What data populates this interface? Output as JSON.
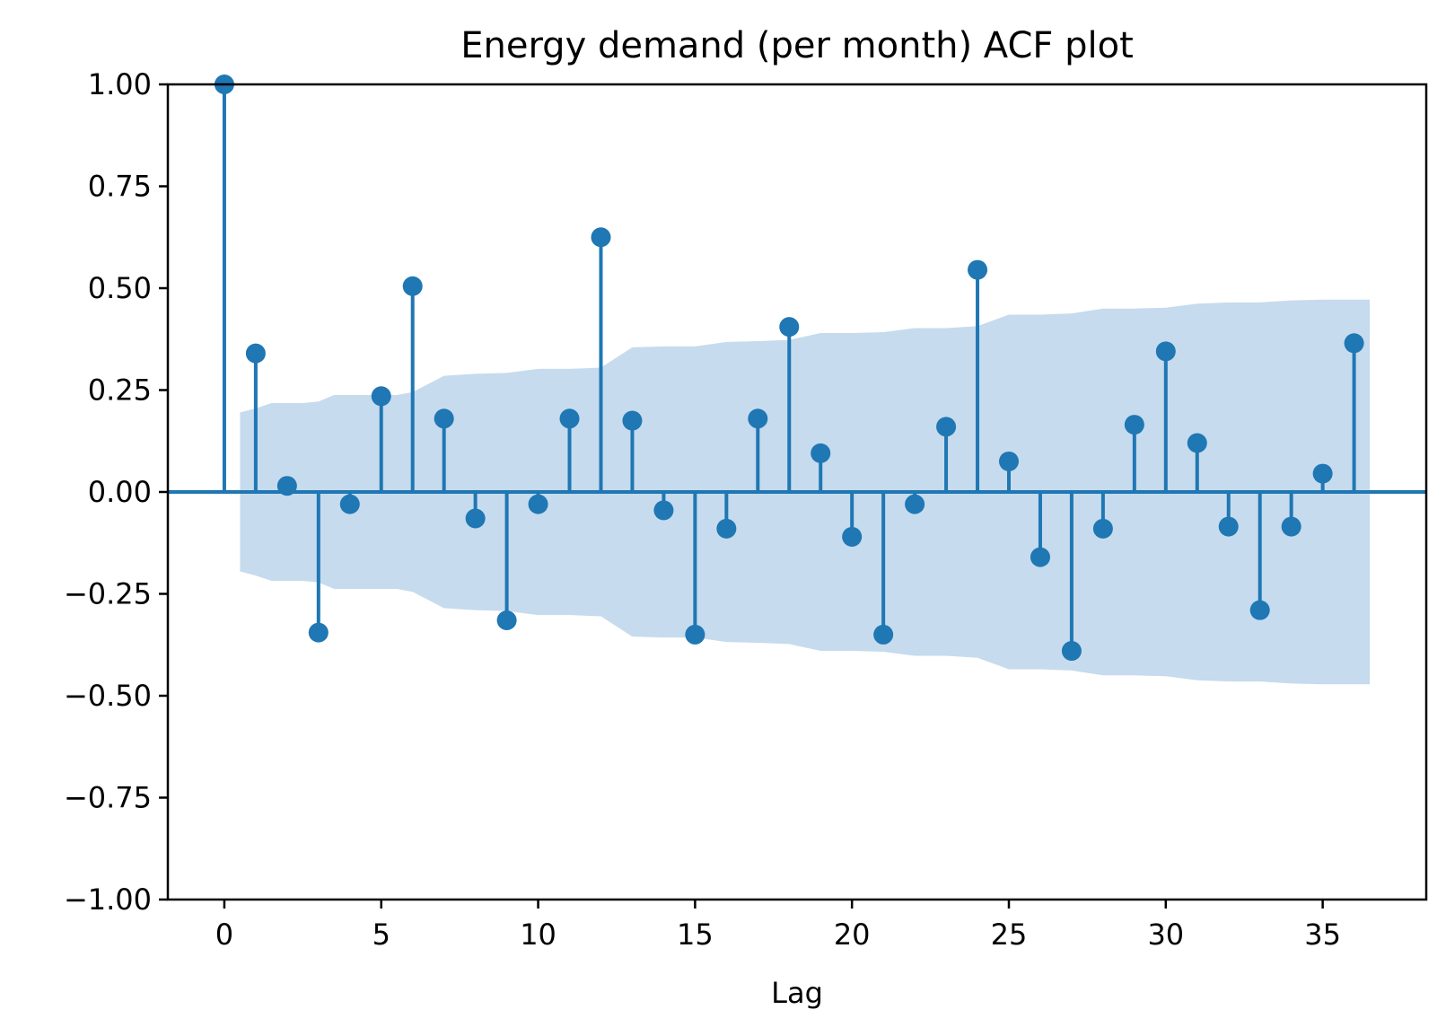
{
  "colors": {
    "series": "#1f77b4",
    "band": "#c6dbed",
    "axis": "#000000",
    "background": "#ffffff"
  },
  "chart_data": {
    "type": "stem",
    "title": "Energy demand (per month) ACF plot",
    "xlabel": "Lag",
    "ylabel": "",
    "xlim": [
      -1.8,
      38.3
    ],
    "ylim": [
      -1.0,
      1.0
    ],
    "grid": false,
    "legend": "none",
    "x_ticks": [
      0,
      5,
      10,
      15,
      20,
      25,
      30,
      35
    ],
    "x_tick_labels": [
      "0",
      "5",
      "10",
      "15",
      "20",
      "25",
      "30",
      "35"
    ],
    "y_ticks": [
      1.0,
      0.75,
      0.5,
      0.25,
      0.0,
      -0.25,
      -0.5,
      -0.75,
      -1.0
    ],
    "y_tick_labels": [
      "1.00",
      "0.75",
      "0.50",
      "0.25",
      "0.00",
      "−0.25",
      "−0.50",
      "−0.75",
      "−1.00"
    ],
    "series": [
      {
        "lags": [
          0,
          1,
          2,
          3,
          4,
          5,
          6,
          7,
          8,
          9,
          10,
          11,
          12,
          13,
          14,
          15,
          16,
          17,
          18,
          19,
          20,
          21,
          22,
          23,
          24,
          25,
          26,
          27,
          28,
          29,
          30,
          31,
          32,
          33,
          34,
          35,
          36
        ],
        "values": [
          1.0,
          0.34,
          0.015,
          -0.345,
          -0.03,
          0.235,
          0.505,
          0.18,
          -0.065,
          -0.315,
          -0.03,
          0.18,
          0.625,
          0.175,
          -0.045,
          -0.35,
          -0.09,
          0.18,
          0.405,
          0.095,
          -0.11,
          -0.35,
          -0.03,
          0.16,
          0.545,
          0.075,
          -0.16,
          -0.39,
          -0.09,
          0.165,
          0.345,
          0.12,
          -0.085,
          -0.29,
          -0.085,
          0.045,
          0.365
        ]
      }
    ],
    "confidence_band": {
      "lags": [
        0.5,
        1,
        1.5,
        2.5,
        3,
        3.5,
        4.5,
        5.5,
        6,
        7,
        8,
        9,
        10,
        11,
        12,
        13,
        14,
        15,
        16,
        17,
        18,
        19,
        20,
        21,
        22,
        23,
        24,
        25,
        26,
        27,
        28,
        29,
        30,
        31,
        32,
        33,
        34,
        35,
        36.5
      ],
      "upper": [
        0.195,
        0.205,
        0.218,
        0.218,
        0.222,
        0.238,
        0.238,
        0.238,
        0.245,
        0.285,
        0.29,
        0.292,
        0.302,
        0.302,
        0.305,
        0.355,
        0.357,
        0.357,
        0.368,
        0.37,
        0.373,
        0.39,
        0.39,
        0.392,
        0.402,
        0.402,
        0.407,
        0.435,
        0.435,
        0.438,
        0.45,
        0.45,
        0.452,
        0.462,
        0.465,
        0.465,
        0.47,
        0.472,
        0.472
      ]
    }
  }
}
